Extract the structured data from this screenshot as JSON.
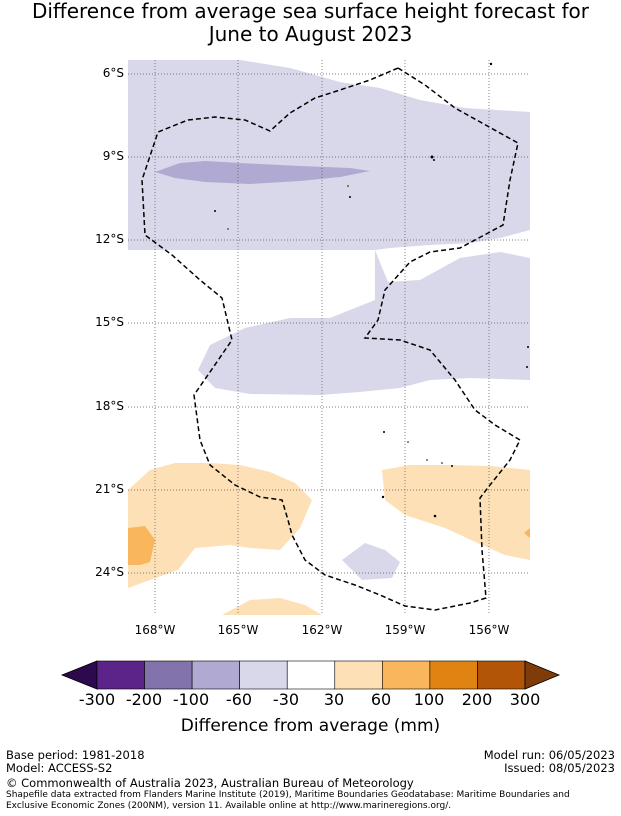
{
  "title": {
    "line1": "Difference from average sea surface height forecast for",
    "line2": "June to August 2023"
  },
  "axes": {
    "lat_labels": [
      "6°S",
      "9°S",
      "12°S",
      "15°S",
      "18°S",
      "21°S",
      "24°S"
    ],
    "lon_labels": [
      "168°W",
      "165°W",
      "162°W",
      "159°W",
      "156°W"
    ]
  },
  "colorbar": {
    "title": "Difference from average (mm)",
    "tick_labels": [
      "-300",
      "-200",
      "-100",
      "-60",
      "-30",
      "30",
      "60",
      "100",
      "200",
      "300"
    ],
    "colors": [
      "#2d0a4e",
      "#5c2389",
      "#8273ad",
      "#b0a9d2",
      "#d8d8ea",
      "#ffffff",
      "#fde0b6",
      "#f9b65d",
      "#e08313",
      "#b25507",
      "#7f3b08"
    ]
  },
  "footer": {
    "base_period": "Base period: 1981-2018",
    "model": "Model: ACCESS-S2",
    "model_run": "Model run: 06/05/2023",
    "issued": "Issued: 08/05/2023",
    "copyright": "© Commonwealth of Australia 2023, Australian Bureau of Meteorology",
    "shapefile": "Shapefile data extracted from Flanders Marine Institute (2019), Maritime Boundaries Geodatabase: Maritime Boundaries and Exclusive Economic Zones (200NM), version 11. Available online at http://www.marineregions.org/."
  }
}
